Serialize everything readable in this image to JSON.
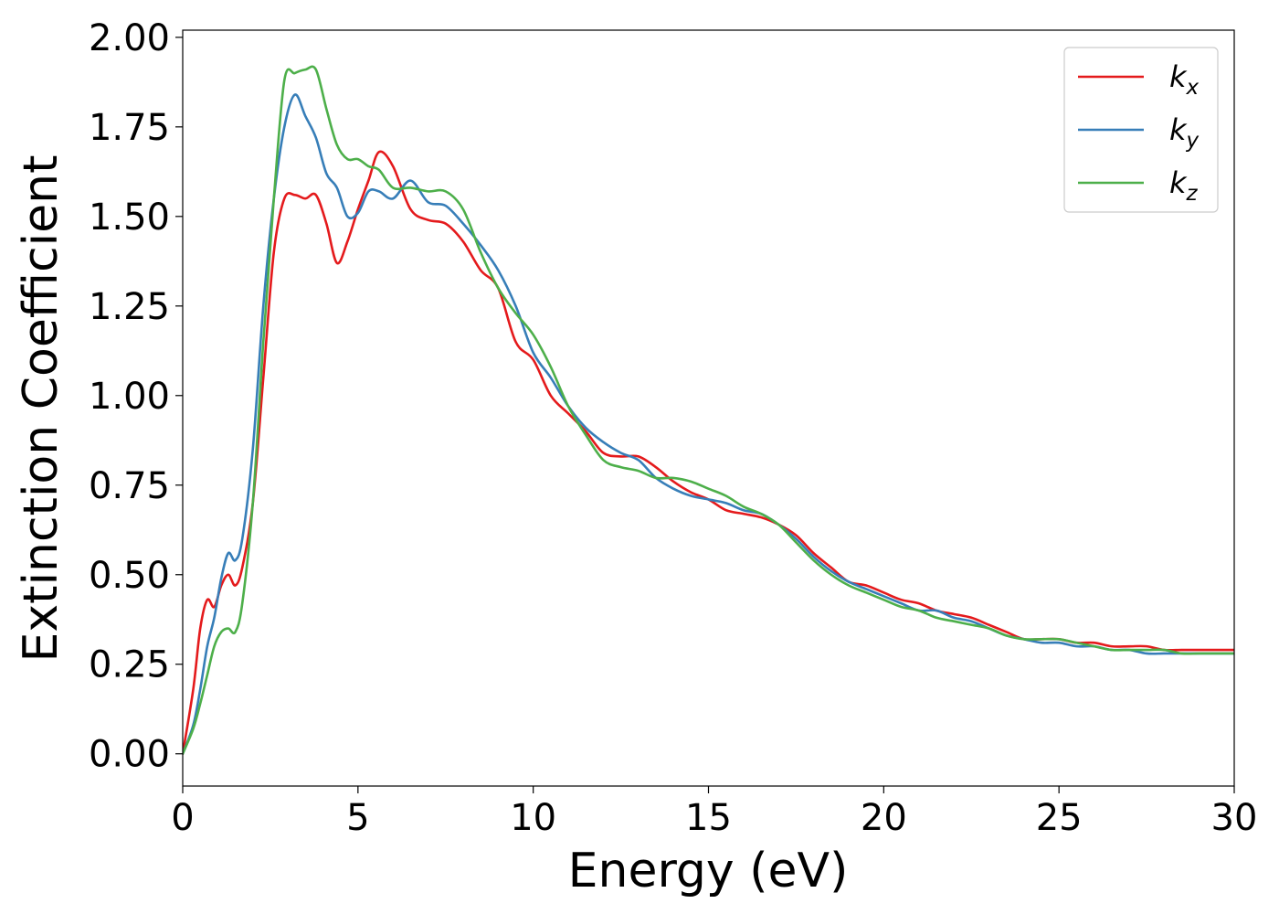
{
  "chart_data": {
    "type": "line",
    "title": "",
    "xlabel": "Energy (eV)",
    "ylabel": "Extinction Coefficient",
    "xlim": [
      0,
      30
    ],
    "ylim": [
      -0.09,
      2.02
    ],
    "xticks": [
      0,
      5,
      10,
      15,
      20,
      25,
      30
    ],
    "xtick_labels": [
      "0",
      "5",
      "10",
      "15",
      "20",
      "25",
      "30"
    ],
    "yticks": [
      0.0,
      0.25,
      0.5,
      0.75,
      1.0,
      1.25,
      1.5,
      1.75,
      2.0
    ],
    "ytick_labels": [
      "0.00",
      "0.25",
      "0.50",
      "0.75",
      "1.00",
      "1.25",
      "1.50",
      "1.75",
      "2.00"
    ],
    "grid": false,
    "legend_position": "top-right",
    "series": [
      {
        "name": "kx",
        "label_base": "k",
        "label_sub": "x",
        "color": "#e41a1c",
        "x": [
          0,
          0.3,
          0.5,
          0.7,
          0.9,
          1.1,
          1.3,
          1.5,
          1.7,
          2.0,
          2.3,
          2.6,
          2.9,
          3.2,
          3.5,
          3.8,
          4.1,
          4.4,
          4.7,
          5.0,
          5.3,
          5.6,
          6.0,
          6.5,
          7.0,
          7.5,
          8.0,
          8.5,
          9.0,
          9.5,
          10.0,
          10.5,
          11.0,
          11.5,
          12.0,
          12.5,
          13.0,
          13.5,
          14.0,
          14.5,
          15.0,
          15.5,
          16.0,
          16.5,
          17.0,
          17.5,
          18.0,
          18.5,
          19.0,
          19.5,
          20.0,
          20.5,
          21.0,
          21.5,
          22.0,
          22.5,
          23.0,
          23.5,
          24.0,
          24.5,
          25.0,
          25.5,
          26.0,
          26.5,
          27.0,
          27.5,
          28.0,
          28.5,
          29.0,
          29.5,
          30.0
        ],
        "y": [
          0.0,
          0.18,
          0.35,
          0.43,
          0.41,
          0.47,
          0.5,
          0.47,
          0.52,
          0.7,
          1.05,
          1.4,
          1.55,
          1.56,
          1.55,
          1.56,
          1.48,
          1.37,
          1.43,
          1.52,
          1.6,
          1.68,
          1.64,
          1.52,
          1.49,
          1.48,
          1.43,
          1.35,
          1.3,
          1.15,
          1.1,
          1.0,
          0.95,
          0.9,
          0.84,
          0.83,
          0.83,
          0.8,
          0.76,
          0.73,
          0.71,
          0.68,
          0.67,
          0.66,
          0.64,
          0.61,
          0.56,
          0.52,
          0.48,
          0.47,
          0.45,
          0.43,
          0.42,
          0.4,
          0.39,
          0.38,
          0.36,
          0.34,
          0.32,
          0.32,
          0.32,
          0.31,
          0.31,
          0.3,
          0.3,
          0.3,
          0.29,
          0.29,
          0.29,
          0.29,
          0.29
        ]
      },
      {
        "name": "ky",
        "label_base": "k",
        "label_sub": "y",
        "color": "#377eb8",
        "x": [
          0,
          0.3,
          0.5,
          0.7,
          0.9,
          1.1,
          1.3,
          1.5,
          1.7,
          2.0,
          2.3,
          2.6,
          2.9,
          3.2,
          3.5,
          3.8,
          4.1,
          4.4,
          4.7,
          5.0,
          5.3,
          5.6,
          6.0,
          6.5,
          7.0,
          7.5,
          8.0,
          8.5,
          9.0,
          9.5,
          10.0,
          10.5,
          11.0,
          11.5,
          12.0,
          12.5,
          13.0,
          13.5,
          14.0,
          14.5,
          15.0,
          15.5,
          16.0,
          16.5,
          17.0,
          17.5,
          18.0,
          18.5,
          19.0,
          19.5,
          20.0,
          20.5,
          21.0,
          21.5,
          22.0,
          22.5,
          23.0,
          23.5,
          24.0,
          24.5,
          25.0,
          25.5,
          26.0,
          26.5,
          27.0,
          27.5,
          28.0,
          28.5,
          29.0,
          29.5,
          30.0
        ],
        "y": [
          0.0,
          0.08,
          0.18,
          0.3,
          0.38,
          0.49,
          0.56,
          0.54,
          0.6,
          0.85,
          1.25,
          1.55,
          1.75,
          1.84,
          1.78,
          1.72,
          1.62,
          1.58,
          1.5,
          1.51,
          1.57,
          1.57,
          1.55,
          1.6,
          1.54,
          1.53,
          1.48,
          1.42,
          1.35,
          1.25,
          1.12,
          1.05,
          0.97,
          0.91,
          0.87,
          0.84,
          0.82,
          0.77,
          0.74,
          0.72,
          0.71,
          0.7,
          0.68,
          0.67,
          0.64,
          0.6,
          0.55,
          0.51,
          0.48,
          0.46,
          0.44,
          0.42,
          0.4,
          0.4,
          0.38,
          0.37,
          0.35,
          0.33,
          0.32,
          0.31,
          0.31,
          0.3,
          0.3,
          0.29,
          0.29,
          0.28,
          0.28,
          0.28,
          0.28,
          0.28,
          0.28
        ]
      },
      {
        "name": "kz",
        "label_base": "k",
        "label_sub": "z",
        "color": "#4daf4a",
        "x": [
          0,
          0.3,
          0.5,
          0.7,
          0.9,
          1.1,
          1.3,
          1.5,
          1.7,
          2.0,
          2.3,
          2.6,
          2.9,
          3.2,
          3.5,
          3.8,
          4.1,
          4.4,
          4.7,
          5.0,
          5.3,
          5.6,
          6.0,
          6.5,
          7.0,
          7.5,
          8.0,
          8.5,
          9.0,
          9.5,
          10.0,
          10.5,
          11.0,
          11.5,
          12.0,
          12.5,
          13.0,
          13.5,
          14.0,
          14.5,
          15.0,
          15.5,
          16.0,
          16.5,
          17.0,
          17.5,
          18.0,
          18.5,
          19.0,
          19.5,
          20.0,
          20.5,
          21.0,
          21.5,
          22.0,
          22.5,
          23.0,
          23.5,
          24.0,
          24.5,
          25.0,
          25.5,
          26.0,
          26.5,
          27.0,
          27.5,
          28.0,
          28.5,
          29.0,
          29.5,
          30.0
        ],
        "y": [
          0.0,
          0.07,
          0.14,
          0.22,
          0.3,
          0.34,
          0.35,
          0.34,
          0.42,
          0.7,
          1.15,
          1.55,
          1.88,
          1.9,
          1.91,
          1.91,
          1.8,
          1.7,
          1.66,
          1.66,
          1.64,
          1.63,
          1.58,
          1.58,
          1.57,
          1.57,
          1.52,
          1.4,
          1.3,
          1.23,
          1.17,
          1.08,
          0.97,
          0.89,
          0.82,
          0.8,
          0.79,
          0.77,
          0.77,
          0.76,
          0.74,
          0.72,
          0.69,
          0.67,
          0.64,
          0.59,
          0.54,
          0.5,
          0.47,
          0.45,
          0.43,
          0.41,
          0.4,
          0.38,
          0.37,
          0.36,
          0.35,
          0.33,
          0.32,
          0.32,
          0.32,
          0.31,
          0.3,
          0.29,
          0.29,
          0.29,
          0.29,
          0.28,
          0.28,
          0.28,
          0.28
        ]
      }
    ]
  }
}
